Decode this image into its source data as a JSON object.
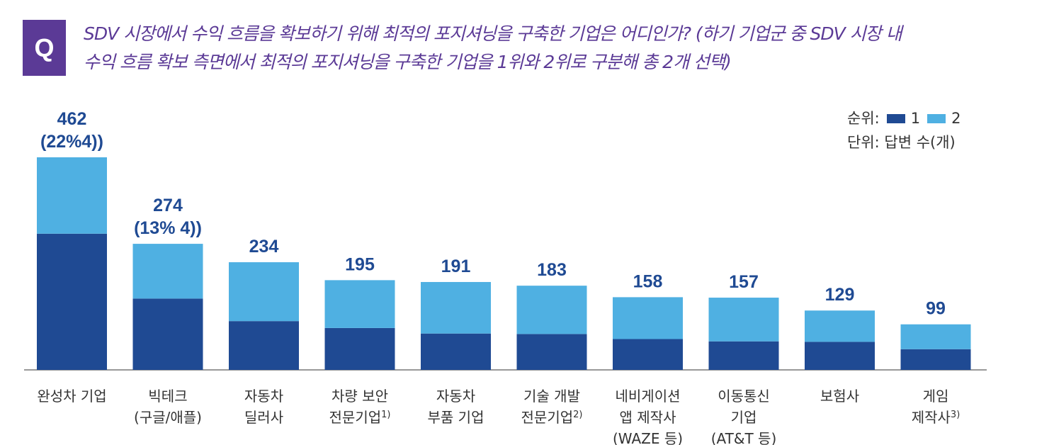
{
  "question": {
    "badge": "Q",
    "line1": "SDV 시장에서 수익 흐름을 확보하기 위해 최적의 포지셔닝을 구축한 기업은 어디인가? (하기 기업군 중 SDV 시장 내",
    "line2": "수익 흐름 확보 측면에서 최적의 포지셔닝을 구축한 기업을 1위와 2위로 구분해 총 2개 선택)"
  },
  "legend": {
    "rank_label": "순위:",
    "series1": "1",
    "series2": "2",
    "unit_label": "단위:",
    "unit_value": "답변 수(개)"
  },
  "chart_data": {
    "type": "bar",
    "stacked": true,
    "categories": [
      [
        "완성차 기업"
      ],
      [
        "빅테크",
        "(구글/애플)"
      ],
      [
        "자동차",
        "딜러사"
      ],
      [
        "차량 보안",
        "전문기업"
      ],
      [
        "자동차",
        "부품 기업"
      ],
      [
        "기술 개발",
        "전문기업"
      ],
      [
        "네비게이션",
        "앱 제작사",
        "(WAZE 등)"
      ],
      [
        "이동통신",
        "기업",
        "(AT&T 등)"
      ],
      [
        "보험사"
      ],
      [
        "게임",
        "제작사"
      ]
    ],
    "category_notes": [
      "",
      "",
      "",
      "1)",
      "",
      "2)",
      "",
      "",
      "",
      "3)"
    ],
    "series": [
      {
        "name": "1",
        "color": "#1f4a93",
        "values": [
          296,
          155,
          106,
          91,
          79,
          78,
          67,
          62,
          61,
          45
        ]
      },
      {
        "name": "2",
        "color": "#4fb0e2",
        "values": [
          166,
          119,
          128,
          104,
          112,
          105,
          91,
          95,
          68,
          54
        ]
      }
    ],
    "totals": [
      "462",
      "274",
      "234",
      "195",
      "191",
      "183",
      "158",
      "157",
      "129",
      "99"
    ],
    "total_notes": [
      "(22%4))",
      "(13% 4))",
      "",
      "",
      "",
      "",
      "",
      "",
      "",
      ""
    ],
    "ylim": [
      0,
      462
    ],
    "title": "",
    "xlabel": "",
    "ylabel": ""
  }
}
